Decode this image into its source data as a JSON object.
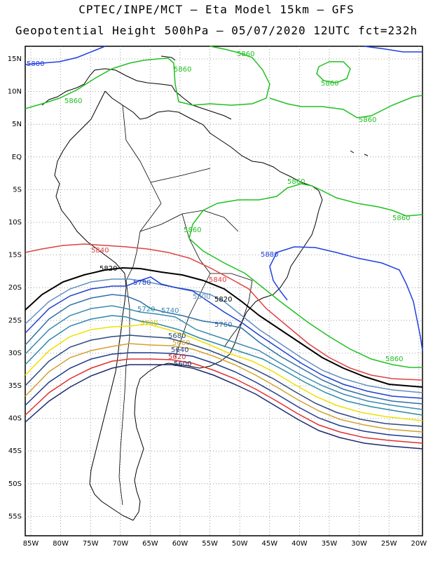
{
  "header": {
    "line1": "CPTEC/INPE/MCT –  Eta Model 15km – GFS",
    "line2": "Geopotential Height 500hPa – 05/07/2020 12UTC fct=232h"
  },
  "map": {
    "lat_labels": [
      "15N",
      "10N",
      "5N",
      "EQ",
      "5S",
      "10S",
      "15S",
      "20S",
      "25S",
      "30S",
      "35S",
      "40S",
      "45S",
      "50S",
      "55S"
    ],
    "lon_labels": [
      "85W",
      "80W",
      "75W",
      "70W",
      "65W",
      "60W",
      "55W",
      "50W",
      "45W",
      "40W",
      "35W",
      "30W",
      "25W",
      "20W"
    ],
    "grid": "dotted",
    "colors": {
      "5600": "#1a2a6e",
      "5620": "#e03030",
      "5640": "#1e3a8a",
      "5660": "#d4a030",
      "5680": "#2c4a7e",
      "5700": "#f0e000",
      "5720": "#2a8aa8",
      "5740": "#3a8ab0",
      "5760": "#3070a8",
      "5780": "#2040d0",
      "5800": "#6090c0",
      "5820": "#000000",
      "5840": "#e04040",
      "5860": "#20c020",
      "5880": "#2040e0"
    },
    "contour_labels": [
      {
        "id": "l5880a",
        "text": "5880"
      },
      {
        "id": "l5860a",
        "text": "5860"
      },
      {
        "id": "l5860b",
        "text": "5860"
      },
      {
        "id": "l5860c",
        "text": "5860"
      },
      {
        "id": "l5860d",
        "text": "5860"
      },
      {
        "id": "l5860e",
        "text": "5860"
      },
      {
        "id": "l5860f",
        "text": "5860"
      },
      {
        "id": "l5860g",
        "text": "5860"
      },
      {
        "id": "l5860h",
        "text": "5860"
      },
      {
        "id": "l5860i",
        "text": "5860"
      },
      {
        "id": "l5840a",
        "text": "5840"
      },
      {
        "id": "l5840b",
        "text": "5840"
      },
      {
        "id": "l5880b",
        "text": "5880"
      },
      {
        "id": "l5820a",
        "text": "5820"
      },
      {
        "id": "l5820b",
        "text": "5820"
      },
      {
        "id": "l5780",
        "text": "5780"
      },
      {
        "id": "l5800",
        "text": "5800"
      },
      {
        "id": "l5720",
        "text": "5720"
      },
      {
        "id": "l5740",
        "text": "5740"
      },
      {
        "id": "l5760",
        "text": "5760"
      },
      {
        "id": "l5700",
        "text": "5700"
      },
      {
        "id": "l5680",
        "text": "5680"
      },
      {
        "id": "l5660",
        "text": "5660"
      },
      {
        "id": "l5640",
        "text": "5640"
      },
      {
        "id": "l5620",
        "text": "5620"
      },
      {
        "id": "l5600",
        "text": "5600"
      }
    ]
  }
}
